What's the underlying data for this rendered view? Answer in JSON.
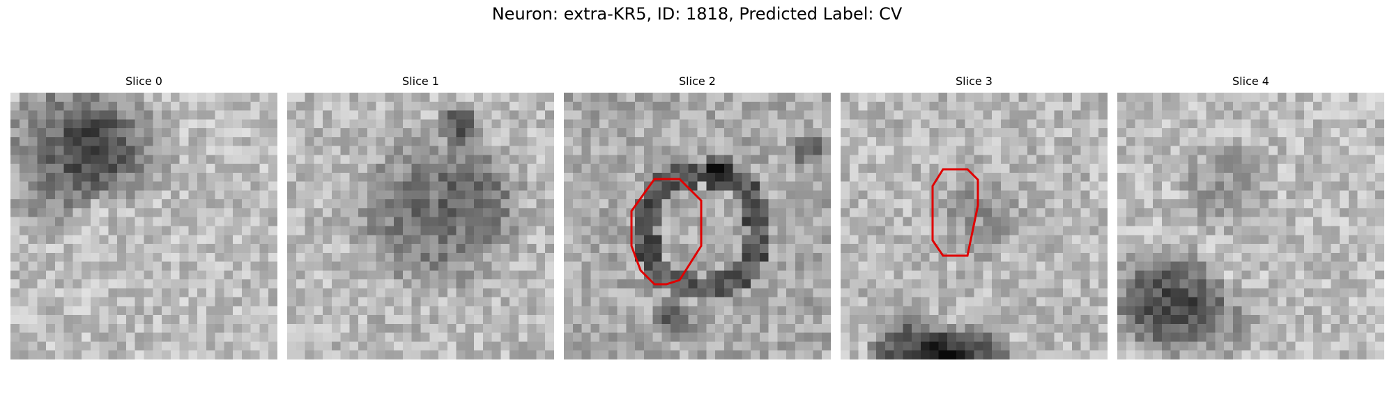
{
  "figure": {
    "title": "Neuron: extra-KR5, ID: 1818, Predicted Label: CV"
  },
  "slices": [
    {
      "title": "Slice 0",
      "has_contour": false
    },
    {
      "title": "Slice 1",
      "has_contour": false
    },
    {
      "title": "Slice 2",
      "has_contour": true
    },
    {
      "title": "Slice 3",
      "has_contour": true
    },
    {
      "title": "Slice 4",
      "has_contour": false
    }
  ],
  "image": {
    "colormap": "grayscale",
    "contour_color": "#e00000"
  }
}
